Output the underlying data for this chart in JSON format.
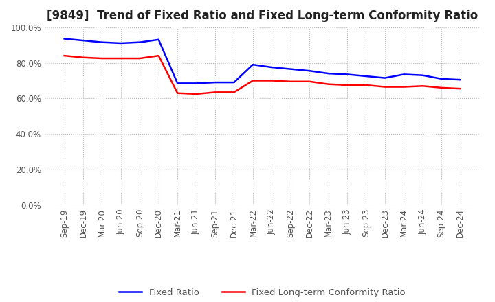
{
  "title": "[9849]  Trend of Fixed Ratio and Fixed Long-term Conformity Ratio",
  "x_labels": [
    "Sep-19",
    "Dec-19",
    "Mar-20",
    "Jun-20",
    "Sep-20",
    "Dec-20",
    "Mar-21",
    "Jun-21",
    "Sep-21",
    "Dec-21",
    "Mar-22",
    "Jun-22",
    "Sep-22",
    "Dec-22",
    "Mar-23",
    "Jun-23",
    "Sep-23",
    "Dec-23",
    "Mar-24",
    "Jun-24",
    "Sep-24",
    "Dec-24"
  ],
  "fixed_ratio": [
    93.5,
    92.5,
    91.5,
    91.0,
    91.5,
    93.0,
    68.5,
    68.5,
    69.0,
    69.0,
    79.0,
    77.5,
    76.5,
    75.5,
    74.0,
    73.5,
    72.5,
    71.5,
    73.5,
    73.0,
    71.0,
    70.5
  ],
  "fixed_lt_ratio": [
    84.0,
    83.0,
    82.5,
    82.5,
    82.5,
    84.0,
    63.0,
    62.5,
    63.5,
    63.5,
    70.0,
    70.0,
    69.5,
    69.5,
    68.0,
    67.5,
    67.5,
    66.5,
    66.5,
    67.0,
    66.0,
    65.5
  ],
  "fixed_ratio_color": "#0000ff",
  "fixed_lt_ratio_color": "#ff0000",
  "ylim": [
    0,
    100
  ],
  "yticks": [
    0,
    20,
    40,
    60,
    80,
    100
  ],
  "ytick_labels": [
    "0.0%",
    "20.0%",
    "40.0%",
    "60.0%",
    "80.0%",
    "100.0%"
  ],
  "background_color": "#ffffff",
  "grid_color": "#bbbbbb",
  "line_width": 1.8,
  "title_fontsize": 12,
  "legend_fontsize": 9.5,
  "tick_fontsize": 8.5
}
